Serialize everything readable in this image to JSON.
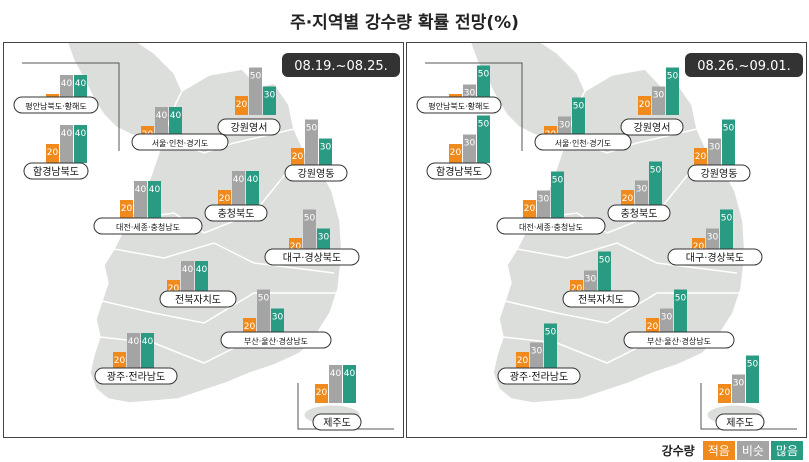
{
  "title": "주·지역별 강수량 확률 전망(%)",
  "colors": {
    "low": "#f08a1c",
    "mid": "#a4a4a4",
    "high": "#2a9b83",
    "map": "#dcdedb",
    "mapStroke": "#ffffff",
    "badge": "#333333"
  },
  "legend": {
    "title": "강수량",
    "items": [
      {
        "label": "적음",
        "key": "low"
      },
      {
        "label": "비슷",
        "key": "mid"
      },
      {
        "label": "많음",
        "key": "high"
      }
    ]
  },
  "chart_data": [
    {
      "type": "bar",
      "title": "08.19.~08.25.",
      "series_names": [
        "적음",
        "비슷",
        "많음"
      ],
      "regions": [
        {
          "name": "평안남북도·황해도",
          "values": [
            20,
            40,
            40
          ]
        },
        {
          "name": "함경남북도",
          "values": [
            20,
            40,
            40
          ]
        },
        {
          "name": "서울·인천·경기도",
          "values": [
            20,
            40,
            40
          ]
        },
        {
          "name": "강원영서",
          "values": [
            20,
            50,
            30
          ]
        },
        {
          "name": "강원영동",
          "values": [
            20,
            50,
            30
          ]
        },
        {
          "name": "충청북도",
          "values": [
            20,
            40,
            40
          ]
        },
        {
          "name": "대전·세종·충청남도",
          "values": [
            20,
            40,
            40
          ]
        },
        {
          "name": "대구·경상북도",
          "values": [
            20,
            50,
            30
          ]
        },
        {
          "name": "전북자치도",
          "values": [
            20,
            40,
            40
          ]
        },
        {
          "name": "부산·울산·경상남도",
          "values": [
            20,
            50,
            30
          ]
        },
        {
          "name": "광주·전라남도",
          "values": [
            20,
            40,
            40
          ]
        },
        {
          "name": "제주도",
          "values": [
            20,
            40,
            40
          ]
        }
      ]
    },
    {
      "type": "bar",
      "title": "08.26.~09.01.",
      "series_names": [
        "적음",
        "비슷",
        "많음"
      ],
      "regions": [
        {
          "name": "평안남북도·황해도",
          "values": [
            20,
            30,
            50
          ]
        },
        {
          "name": "함경남북도",
          "values": [
            20,
            30,
            50
          ]
        },
        {
          "name": "서울·인천·경기도",
          "values": [
            20,
            30,
            50
          ]
        },
        {
          "name": "강원영서",
          "values": [
            20,
            30,
            50
          ]
        },
        {
          "name": "강원영동",
          "values": [
            20,
            30,
            50
          ]
        },
        {
          "name": "충청북도",
          "values": [
            20,
            30,
            50
          ]
        },
        {
          "name": "대전·세종·충청남도",
          "values": [
            20,
            30,
            50
          ]
        },
        {
          "name": "대구·경상북도",
          "values": [
            20,
            30,
            50
          ]
        },
        {
          "name": "전북자치도",
          "values": [
            20,
            30,
            50
          ]
        },
        {
          "name": "부산·울산·경상남도",
          "values": [
            20,
            30,
            50
          ]
        },
        {
          "name": "광주·전라남도",
          "values": [
            20,
            30,
            50
          ]
        },
        {
          "name": "제주도",
          "values": [
            20,
            30,
            50
          ]
        }
      ]
    }
  ]
}
